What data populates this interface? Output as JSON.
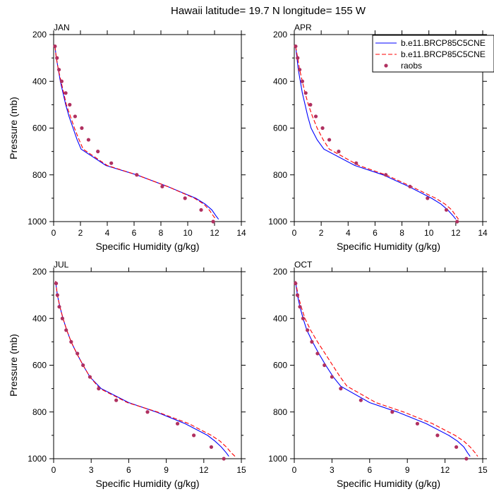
{
  "figure_title": "Hawaii  latitude= 19.7 N longitude= 155 W",
  "colors": {
    "model1": "#0000ff",
    "model2": "#ff0000",
    "raobs": "#b03060"
  },
  "legend": {
    "placement": "top-right",
    "entries": [
      "b.e11.BRCP85C5CNE",
      "b.e11.BRCP85C5CNE",
      "raobs"
    ]
  },
  "chart_data": [
    {
      "type": "line",
      "panel_title": "JAN",
      "xlabel": "Specific Humidity (g/kg)",
      "ylabel": "Pressure (mb)",
      "xlim": [
        0,
        14
      ],
      "ylim": [
        1000,
        200
      ],
      "xticks": [
        0,
        2,
        4,
        6,
        8,
        10,
        12,
        14
      ],
      "xtick_labels": [
        "0",
        "2",
        "4",
        "6",
        "8",
        "10",
        "12",
        "14"
      ],
      "yticks": [
        200,
        400,
        600,
        800,
        1000
      ],
      "ytick_labels": [
        "200",
        "400",
        "600",
        "800",
        "1000"
      ],
      "series": [
        {
          "style": "solid",
          "color": "#0000ff",
          "pressure": [
            250,
            300,
            350,
            400,
            450,
            500,
            550,
            600,
            650,
            690,
            760,
            800,
            850,
            900,
            925,
            950,
            975,
            990
          ],
          "q": [
            0.1,
            0.2,
            0.35,
            0.5,
            0.7,
            0.9,
            1.15,
            1.45,
            1.75,
            2.05,
            3.9,
            6.2,
            8.5,
            10.6,
            11.3,
            11.8,
            12.1,
            12.3
          ]
        },
        {
          "style": "dashed",
          "color": "#ff0000",
          "pressure": [
            250,
            300,
            350,
            400,
            450,
            500,
            550,
            600,
            650,
            690,
            760,
            800,
            850,
            900,
            925,
            950,
            975,
            990
          ],
          "q": [
            0.1,
            0.2,
            0.35,
            0.55,
            0.75,
            0.95,
            1.25,
            1.55,
            1.9,
            2.2,
            4.0,
            6.2,
            8.5,
            10.5,
            11.2,
            11.6,
            11.9,
            12.1
          ]
        },
        {
          "name": "raobs",
          "style": "markers",
          "color": "#b03060",
          "pressure": [
            250,
            300,
            350,
            400,
            450,
            500,
            550,
            600,
            650,
            700,
            750,
            800,
            850,
            900,
            950,
            1000
          ],
          "q": [
            0.1,
            0.25,
            0.4,
            0.6,
            0.9,
            1.2,
            1.6,
            2.1,
            2.6,
            3.3,
            4.3,
            6.2,
            8.1,
            9.8,
            11.0,
            11.9
          ]
        }
      ]
    },
    {
      "type": "line",
      "panel_title": "APR",
      "xlabel": "Specific Humidity (g/kg)",
      "ylabel": "",
      "xlim": [
        0,
        14
      ],
      "ylim": [
        1000,
        200
      ],
      "xticks": [
        0,
        2,
        4,
        6,
        8,
        10,
        12,
        14
      ],
      "xtick_labels": [
        "0",
        "2",
        "4",
        "6",
        "8",
        "10",
        "12",
        "14"
      ],
      "yticks": [
        200,
        400,
        600,
        800,
        1000
      ],
      "ytick_labels": [
        "200",
        "400",
        "600",
        "800",
        "1000"
      ],
      "series": [
        {
          "style": "solid",
          "color": "#0000ff",
          "pressure": [
            250,
            300,
            350,
            400,
            450,
            500,
            550,
            600,
            650,
            690,
            760,
            800,
            850,
            900,
            925,
            950,
            975,
            990
          ],
          "q": [
            0.1,
            0.2,
            0.3,
            0.45,
            0.6,
            0.8,
            1.0,
            1.25,
            1.7,
            2.2,
            4.5,
            6.6,
            8.5,
            10.2,
            10.9,
            11.4,
            11.8,
            12.0
          ]
        },
        {
          "style": "dashed",
          "color": "#ff0000",
          "pressure": [
            250,
            300,
            350,
            400,
            450,
            500,
            550,
            600,
            650,
            690,
            760,
            800,
            850,
            900,
            925,
            950,
            975,
            990
          ],
          "q": [
            0.1,
            0.25,
            0.4,
            0.6,
            0.8,
            1.05,
            1.35,
            1.7,
            2.15,
            2.6,
            4.8,
            6.8,
            8.7,
            10.5,
            11.2,
            11.7,
            12.0,
            12.2
          ]
        },
        {
          "name": "raobs",
          "style": "markers",
          "color": "#b03060",
          "pressure": [
            250,
            300,
            350,
            400,
            450,
            500,
            550,
            600,
            650,
            700,
            750,
            800,
            850,
            900,
            950,
            1000
          ],
          "q": [
            0.1,
            0.25,
            0.4,
            0.6,
            0.85,
            1.2,
            1.6,
            2.1,
            2.6,
            3.3,
            4.6,
            6.8,
            8.6,
            9.9,
            11.3,
            12.1
          ]
        }
      ]
    },
    {
      "type": "line",
      "panel_title": "JUL",
      "xlabel": "Specific Humidity (g/kg)",
      "ylabel": "Pressure (mb)",
      "xlim": [
        0,
        15
      ],
      "ylim": [
        1000,
        200
      ],
      "xticks": [
        0,
        3,
        6,
        9,
        12,
        15
      ],
      "xtick_labels": [
        "0",
        "3",
        "6",
        "9",
        "12",
        "15"
      ],
      "yticks": [
        200,
        400,
        600,
        800,
        1000
      ],
      "ytick_labels": [
        "200",
        "400",
        "600",
        "800",
        "1000"
      ],
      "series": [
        {
          "style": "solid",
          "color": "#0000ff",
          "pressure": [
            240,
            300,
            350,
            400,
            450,
            500,
            550,
            600,
            650,
            700,
            760,
            800,
            850,
            900,
            925,
            950,
            975,
            990
          ],
          "q": [
            0.15,
            0.3,
            0.5,
            0.75,
            1.05,
            1.4,
            1.85,
            2.35,
            2.9,
            3.8,
            6.0,
            8.2,
            10.5,
            12.3,
            12.9,
            13.4,
            13.8,
            14.0
          ]
        },
        {
          "style": "dashed",
          "color": "#ff0000",
          "pressure": [
            240,
            300,
            350,
            400,
            450,
            500,
            550,
            600,
            650,
            700,
            760,
            800,
            850,
            900,
            925,
            950,
            975,
            990
          ],
          "q": [
            0.15,
            0.3,
            0.5,
            0.75,
            1.05,
            1.4,
            1.85,
            2.35,
            2.9,
            3.7,
            5.9,
            8.3,
            10.8,
            12.6,
            13.3,
            13.8,
            14.2,
            14.5
          ]
        },
        {
          "name": "raobs",
          "style": "markers",
          "color": "#b03060",
          "pressure": [
            250,
            300,
            350,
            400,
            450,
            500,
            550,
            600,
            650,
            700,
            750,
            800,
            850,
            900,
            950,
            1000
          ],
          "q": [
            0.2,
            0.3,
            0.45,
            0.7,
            1.0,
            1.4,
            1.9,
            2.35,
            2.9,
            3.6,
            5.0,
            7.5,
            9.9,
            11.2,
            12.6,
            13.6
          ]
        }
      ]
    },
    {
      "type": "line",
      "panel_title": "OCT",
      "xlabel": "Specific Humidity (g/kg)",
      "ylabel": "",
      "xlim": [
        0,
        15
      ],
      "ylim": [
        1000,
        200
      ],
      "xticks": [
        0,
        3,
        6,
        9,
        12,
        15
      ],
      "xtick_labels": [
        "0",
        "3",
        "6",
        "9",
        "12",
        "15"
      ],
      "yticks": [
        200,
        400,
        600,
        800,
        1000
      ],
      "ytick_labels": [
        "200",
        "400",
        "600",
        "800",
        "1000"
      ],
      "series": [
        {
          "style": "solid",
          "color": "#0000ff",
          "pressure": [
            240,
            300,
            350,
            400,
            450,
            500,
            550,
            600,
            650,
            690,
            760,
            800,
            850,
            900,
            925,
            950,
            975,
            990
          ],
          "q": [
            0.1,
            0.25,
            0.45,
            0.7,
            1.0,
            1.45,
            1.95,
            2.5,
            3.1,
            3.7,
            6.0,
            8.2,
            10.5,
            12.3,
            13.0,
            13.5,
            13.8,
            14.0
          ]
        },
        {
          "style": "dashed",
          "color": "#ff0000",
          "pressure": [
            240,
            300,
            350,
            400,
            450,
            500,
            550,
            600,
            650,
            690,
            760,
            800,
            850,
            900,
            925,
            950,
            975,
            990
          ],
          "q": [
            0.1,
            0.3,
            0.55,
            0.85,
            1.3,
            1.85,
            2.45,
            3.05,
            3.65,
            4.2,
            6.5,
            8.7,
            11.0,
            12.8,
            13.5,
            14.0,
            14.4,
            14.6
          ]
        },
        {
          "name": "raobs",
          "style": "markers",
          "color": "#b03060",
          "pressure": [
            250,
            300,
            350,
            400,
            450,
            500,
            550,
            600,
            650,
            700,
            750,
            800,
            850,
            900,
            950,
            1000
          ],
          "q": [
            0.1,
            0.25,
            0.45,
            0.7,
            1.05,
            1.4,
            1.85,
            2.4,
            3.0,
            3.7,
            5.3,
            7.8,
            9.8,
            11.4,
            12.9,
            13.7
          ]
        }
      ]
    }
  ]
}
